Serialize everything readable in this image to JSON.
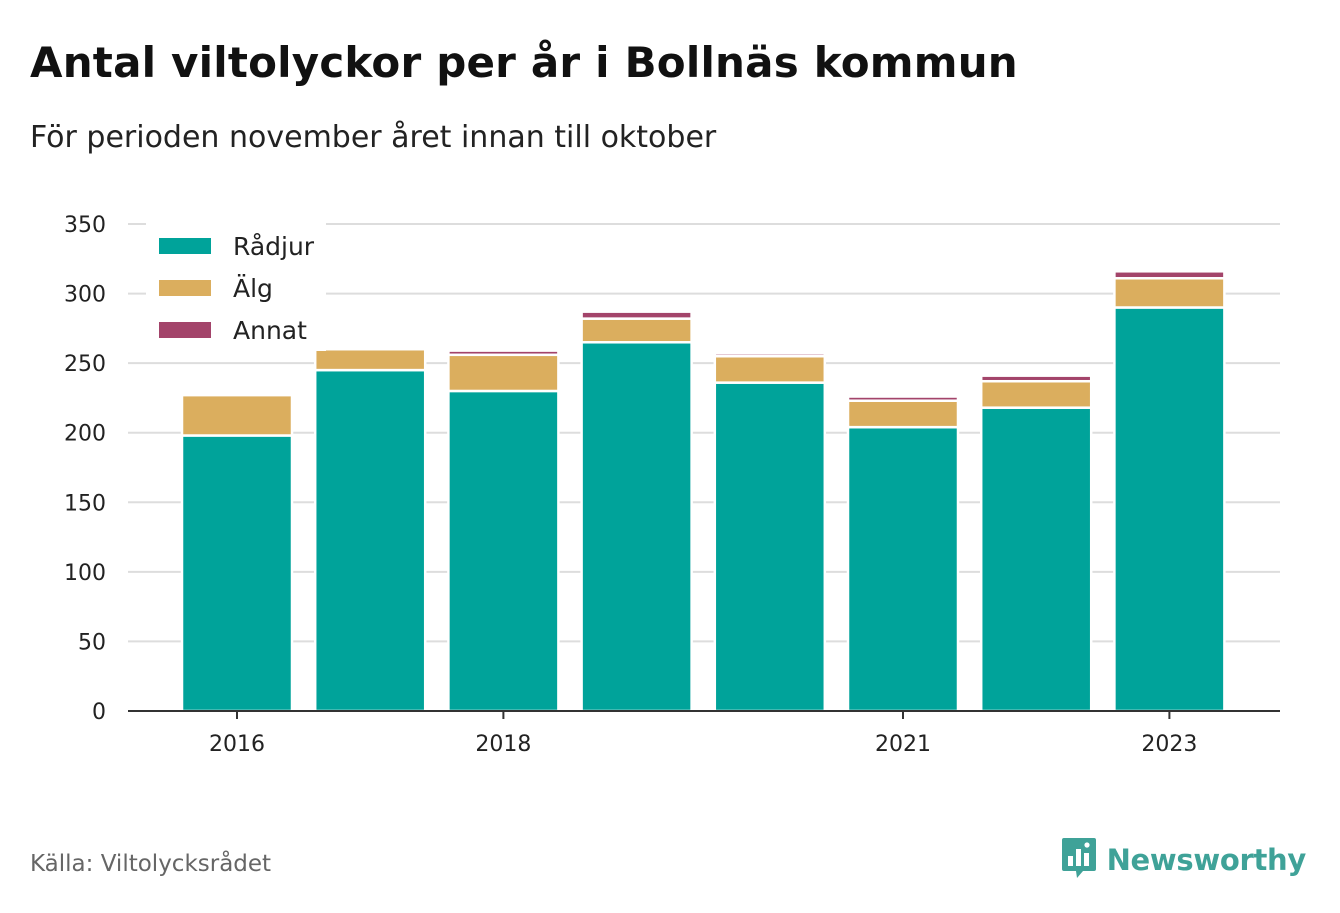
{
  "header": {
    "title": "Antal viltolyckor per år i Bollnäs kommun",
    "subtitle": "För perioden november året innan till oktober"
  },
  "footer": {
    "source": "Källa: Viltolycksrådet",
    "brand": "Newsworthy",
    "brand_icon": "bar-chart-speech-bubble-icon",
    "brand_color": "#3fa298"
  },
  "chart_data": {
    "type": "bar",
    "stacked": true,
    "categories": [
      2016,
      2017,
      2018,
      2019,
      2020,
      2021,
      2022,
      2023
    ],
    "x_tick_labels": [
      "2016",
      "2018",
      "2021",
      "2023"
    ],
    "series": [
      {
        "name": "Rådjur",
        "color": "#00a39a",
        "values": [
          198,
          245,
          230,
          265,
          236,
          204,
          218,
          290
        ]
      },
      {
        "name": "Älg",
        "color": "#dbae5e",
        "values": [
          29,
          15,
          26,
          17,
          19,
          19,
          19,
          21
        ]
      },
      {
        "name": "Annat",
        "color": "#a3446a",
        "values": [
          0,
          0,
          3,
          5,
          2,
          3,
          4,
          5
        ]
      }
    ],
    "ylim": [
      0,
      350
    ],
    "y_ticks": [
      0,
      50,
      100,
      150,
      200,
      250,
      300,
      350
    ],
    "grid": true,
    "legend_position": "top-left",
    "xlabel": "",
    "ylabel": ""
  }
}
